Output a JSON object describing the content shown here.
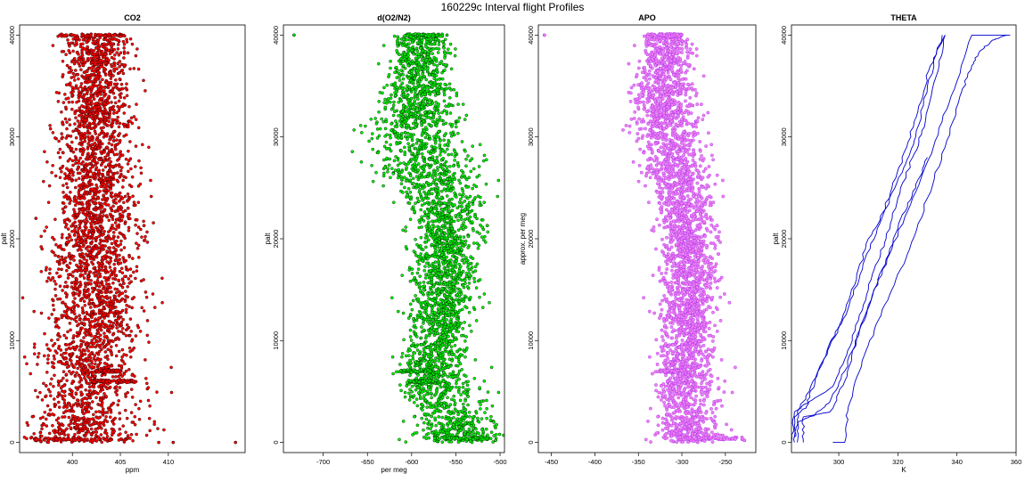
{
  "figure": {
    "title": "160229c   Interval flight Profiles"
  },
  "colors": {
    "co2_fill": "#ff0000",
    "o2n2_fill": "#00ee00",
    "apo_fill": "#ee82ee",
    "apo_stroke": "#a020f0",
    "theta_line": "#0000cd",
    "point_outline": "#000000"
  },
  "chart_data": [
    {
      "type": "scatter",
      "title": "CO2",
      "xlabel": "ppm",
      "ylabel": "palt",
      "xlim": [
        394.5,
        418
      ],
      "ylim": [
        -1000,
        41000
      ],
      "xticks": [
        400,
        405,
        410
      ],
      "yticks": [
        0,
        10000,
        20000,
        30000,
        40000
      ],
      "grid": false,
      "spine": [
        [
          399.5,
          0
        ],
        [
          401,
          2000
        ],
        [
          401.5,
          4000
        ],
        [
          402,
          6000
        ],
        [
          401.5,
          8000
        ],
        [
          402,
          10000
        ],
        [
          402.5,
          13000
        ],
        [
          402,
          16000
        ],
        [
          402,
          19000
        ],
        [
          402.5,
          22000
        ],
        [
          402.5,
          25000
        ],
        [
          402.5,
          28000
        ],
        [
          402.5,
          31000
        ],
        [
          402.5,
          34000
        ],
        [
          402.5,
          37000
        ],
        [
          402.5,
          40000
        ]
      ],
      "spread": [
        [
          0,
          3.5
        ],
        [
          2000,
          2.8
        ],
        [
          5000,
          2.6
        ],
        [
          10000,
          2.2
        ],
        [
          20000,
          2.2
        ],
        [
          30000,
          1.8
        ],
        [
          40000,
          1.6
        ]
      ],
      "streaks": [
        {
          "y": 40000,
          "x0": 398.5,
          "x1": 405.5
        },
        {
          "y": 6000,
          "x0": 402,
          "x1": 406.5
        },
        {
          "y": 7000,
          "x0": 402.5,
          "x1": 405
        },
        {
          "y": 300,
          "x0": 396,
          "x1": 406
        }
      ],
      "outliers": [
        [
          409,
          0
        ],
        [
          410.5,
          0
        ],
        [
          417,
          0
        ],
        [
          405.8,
          23000
        ],
        [
          405.5,
          21500
        ],
        [
          396.2,
          22000
        ],
        [
          406,
          10500
        ]
      ]
    },
    {
      "type": "scatter",
      "title": "d(O2/N2)",
      "xlabel": "per meg",
      "ylabel": "palt",
      "xlim": [
        -745,
        -495
      ],
      "ylim": [
        -1000,
        41000
      ],
      "xticks": [
        -700,
        -650,
        -600,
        -550,
        -500
      ],
      "yticks": [
        0,
        10000,
        20000,
        30000,
        40000
      ],
      "grid": false,
      "spine": [
        [
          -550,
          0
        ],
        [
          -550,
          2000
        ],
        [
          -565,
          4000
        ],
        [
          -575,
          7000
        ],
        [
          -570,
          10000
        ],
        [
          -565,
          14000
        ],
        [
          -565,
          18000
        ],
        [
          -560,
          22000
        ],
        [
          -575,
          26000
        ],
        [
          -595,
          30000
        ],
        [
          -590,
          34000
        ],
        [
          -590,
          37000
        ],
        [
          -590,
          40000
        ]
      ],
      "spread": [
        [
          0,
          25
        ],
        [
          5000,
          20
        ],
        [
          10000,
          16
        ],
        [
          20000,
          18
        ],
        [
          28000,
          28
        ],
        [
          35000,
          18
        ],
        [
          40000,
          14
        ]
      ],
      "streaks": [
        {
          "y": 40000,
          "x0": -605,
          "x1": -565
        },
        {
          "y": 7000,
          "x0": -612,
          "x1": -578
        },
        {
          "y": 6000,
          "x0": -605,
          "x1": -575
        },
        {
          "y": 400,
          "x0": -575,
          "x1": -510
        }
      ],
      "outliers": [
        [
          -733,
          40000
        ],
        [
          -560,
          40000
        ],
        [
          -505,
          200
        ]
      ]
    },
    {
      "type": "scatter",
      "title": "APO",
      "xlabel": "",
      "ylabel": "approx. per meg",
      "xlim": [
        -465,
        -215
      ],
      "ylim": [
        -1000,
        41000
      ],
      "xticks": [
        -450,
        -400,
        -350,
        -300,
        -250
      ],
      "yticks": [
        0,
        10000,
        20000,
        30000,
        40000
      ],
      "grid": false,
      "spine": [
        [
          -295,
          0
        ],
        [
          -295,
          3000
        ],
        [
          -295,
          6000
        ],
        [
          -293,
          10000
        ],
        [
          -293,
          15000
        ],
        [
          -295,
          20000
        ],
        [
          -300,
          25000
        ],
        [
          -315,
          30000
        ],
        [
          -320,
          34000
        ],
        [
          -318,
          37000
        ],
        [
          -318,
          40000
        ]
      ],
      "spread": [
        [
          0,
          18
        ],
        [
          5000,
          16
        ],
        [
          10000,
          15
        ],
        [
          20000,
          15
        ],
        [
          28000,
          18
        ],
        [
          35000,
          17
        ],
        [
          40000,
          12
        ]
      ],
      "streaks": [
        {
          "y": 40000,
          "x0": -340,
          "x1": -300
        },
        {
          "y": 7000,
          "x0": -325,
          "x1": -300
        },
        {
          "y": 400,
          "x0": -305,
          "x1": -230
        }
      ],
      "outliers": [
        [
          -458,
          40000
        ],
        [
          -228,
          200
        ],
        [
          -258,
          18500
        ]
      ]
    },
    {
      "type": "line",
      "title": "THETA",
      "xlabel": "K",
      "ylabel": "palt",
      "xlim": [
        284,
        360
      ],
      "ylim": [
        -1000,
        41000
      ],
      "xticks": [
        300,
        320,
        340,
        360
      ],
      "yticks": [
        0,
        10000,
        20000,
        30000,
        40000
      ],
      "grid": false,
      "series": [
        {
          "values": [
            [
              285,
              0
            ],
            [
              285,
              2500
            ],
            [
              289,
              3500
            ],
            [
              292,
              6000
            ],
            [
              297,
              9500
            ],
            [
              303,
              13000
            ],
            [
              308,
              17000
            ],
            [
              313,
              21000
            ],
            [
              318,
              25000
            ],
            [
              323,
              29000
            ],
            [
              327,
              33000
            ],
            [
              331,
              37000
            ],
            [
              336,
              40000
            ]
          ]
        },
        {
          "values": [
            [
              286,
              0
            ],
            [
              286,
              3000
            ],
            [
              290,
              5000
            ],
            [
              296,
              9000
            ],
            [
              301,
              12000
            ],
            [
              306,
              16000
            ],
            [
              310,
              20000
            ],
            [
              316,
              23000
            ],
            [
              322,
              27000
            ],
            [
              326,
              30000
            ],
            [
              330,
              35000
            ],
            [
              335,
              40000
            ]
          ]
        },
        {
          "values": [
            [
              288,
              0
            ],
            [
              288,
              2500
            ],
            [
              297,
              3000
            ],
            [
              302,
              6000
            ],
            [
              306,
              10000
            ],
            [
              311,
              14000
            ],
            [
              316,
              18000
            ],
            [
              321,
              22000
            ],
            [
              326,
              25000
            ],
            [
              330,
              28000
            ]
          ]
        },
        {
          "values": [
            [
              285,
              500
            ],
            [
              286,
              2000
            ],
            [
              292,
              2700
            ],
            [
              297,
              4000
            ],
            [
              302,
              7000
            ],
            [
              307,
              11000
            ],
            [
              312,
              15000
            ],
            [
              318,
              19000
            ],
            [
              325,
              24000
            ],
            [
              332,
              29000
            ],
            [
              338,
              34000
            ],
            [
              345,
              40000
            ],
            [
              358,
              40000
            ]
          ]
        },
        {
          "values": [
            [
              298,
              0
            ],
            [
              302,
              0
            ],
            [
              303,
              3000
            ],
            [
              307,
              7000
            ],
            [
              312,
              11000
            ],
            [
              318,
              15000
            ],
            [
              324,
              19000
            ],
            [
              330,
              24000
            ],
            [
              336,
              29000
            ],
            [
              341,
              34000
            ],
            [
              345,
              37000
            ],
            [
              348,
              38500
            ],
            [
              352,
              39500
            ],
            [
              357,
              40000
            ]
          ]
        },
        {
          "values": [
            [
              284,
              0
            ],
            [
              285,
              3000
            ],
            [
              290,
              4000
            ],
            [
              298,
              5500
            ],
            [
              303,
              9000
            ],
            [
              308,
              13000
            ],
            [
              312,
              17000
            ],
            [
              316,
              20000
            ],
            [
              320,
              24000
            ],
            [
              325,
              28000
            ],
            [
              329,
              31000
            ],
            [
              333,
              36000
            ],
            [
              336,
              40000
            ]
          ]
        }
      ]
    }
  ]
}
